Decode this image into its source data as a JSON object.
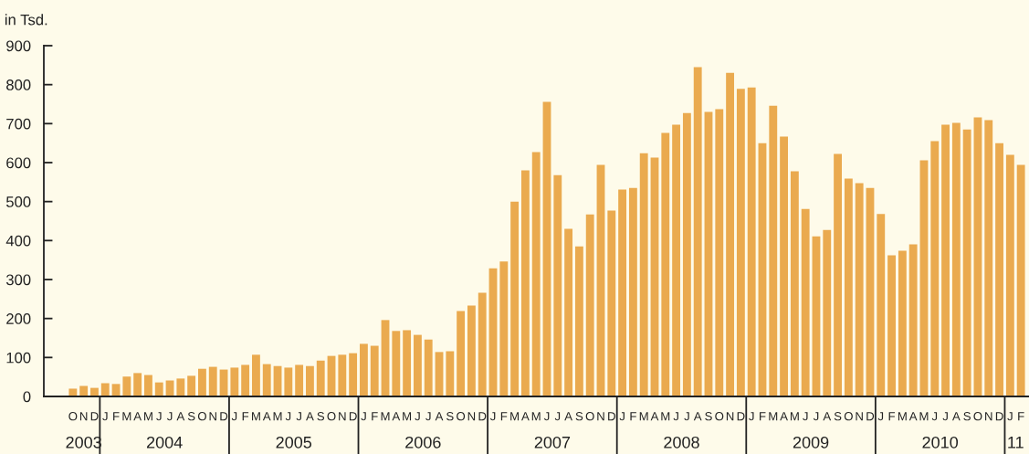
{
  "chart_data": {
    "type": "bar",
    "ylabel": "in Tsd.",
    "color": "#eaaa4f",
    "categories": [
      "O",
      "N",
      "D",
      "J",
      "F",
      "M",
      "A",
      "M",
      "J",
      "J",
      "A",
      "S",
      "O",
      "N",
      "D",
      "J",
      "F",
      "M",
      "A",
      "M",
      "J",
      "J",
      "A",
      "S",
      "O",
      "N",
      "D",
      "J",
      "F",
      "M",
      "A",
      "M",
      "J",
      "J",
      "A",
      "S",
      "O",
      "N",
      "D",
      "J",
      "F",
      "M",
      "A",
      "M",
      "J",
      "J",
      "A",
      "S",
      "O",
      "N",
      "D",
      "J",
      "F",
      "M",
      "A",
      "M",
      "J",
      "J",
      "A",
      "S",
      "O",
      "N",
      "D",
      "J",
      "F",
      "M",
      "A",
      "M",
      "J",
      "J",
      "A",
      "S",
      "O",
      "N",
      "D",
      "J",
      "F",
      "M",
      "A",
      "M",
      "J",
      "J",
      "A",
      "S",
      "O",
      "N",
      "D",
      "J",
      "F"
    ],
    "values": [
      20,
      27,
      22,
      34,
      32,
      51,
      60,
      55,
      36,
      41,
      46,
      53,
      71,
      76,
      69,
      74,
      81,
      107,
      83,
      78,
      74,
      81,
      78,
      92,
      104,
      107,
      111,
      135,
      130,
      196,
      168,
      170,
      158,
      146,
      114,
      116,
      219,
      233,
      266,
      329,
      346,
      500,
      580,
      627,
      756,
      568,
      430,
      385,
      467,
      594,
      477,
      531,
      535,
      624,
      613,
      676,
      697,
      727,
      845,
      730,
      737,
      830,
      789,
      793,
      650,
      746,
      667,
      578,
      481,
      411,
      427,
      622,
      559,
      547,
      535,
      468,
      362,
      374,
      390,
      606,
      655,
      697,
      702,
      685,
      716,
      709,
      650,
      620,
      594
    ],
    "ylim": [
      0,
      900
    ],
    "yticks": [
      0,
      100,
      200,
      300,
      400,
      500,
      600,
      700,
      800,
      900
    ],
    "annotations": [
      "2003",
      "2004",
      "2005",
      "2006",
      "2007",
      "2008",
      "2009",
      "2010",
      "11"
    ]
  }
}
